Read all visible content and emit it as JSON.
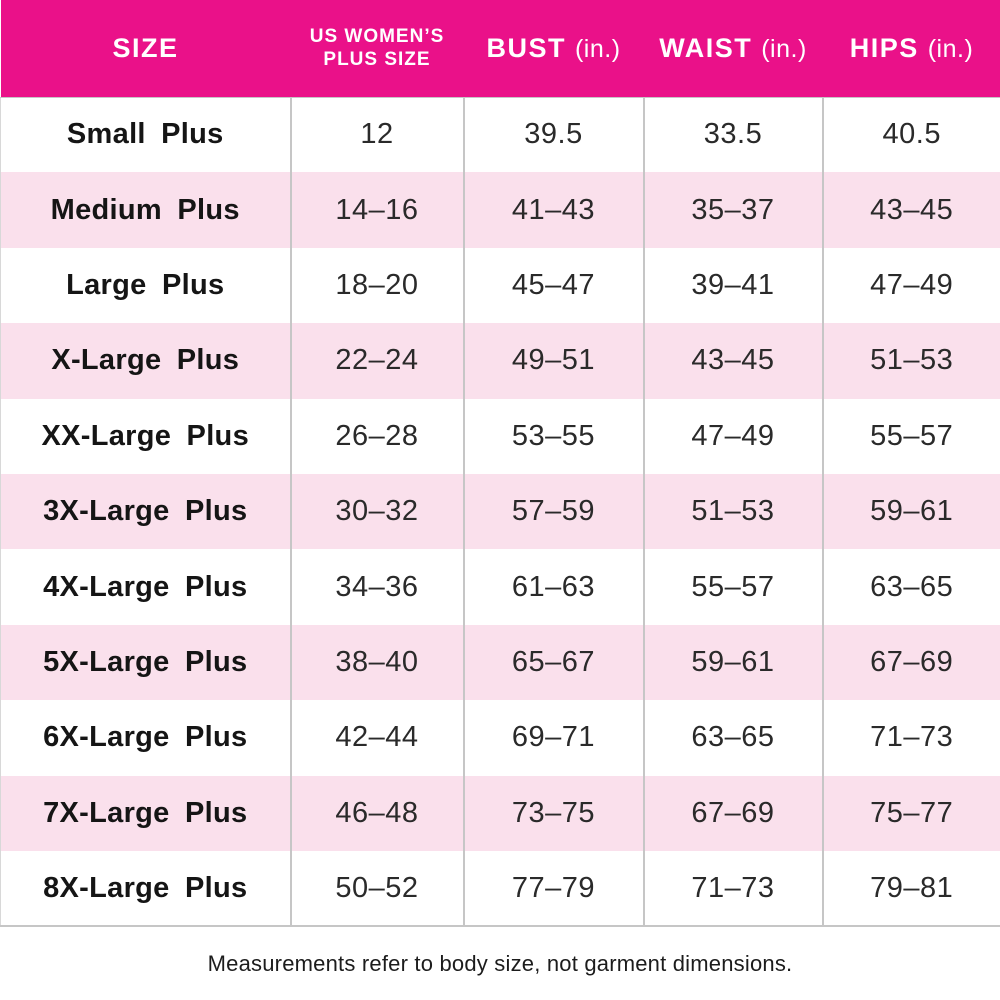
{
  "colors": {
    "header_bg": "#EA1189",
    "header_text": "#FFFFFF",
    "row_bg": "#FFFFFF",
    "row_alt_bg": "#FAE0EC",
    "grid": "#C6C6C6",
    "grid_light": "#D8D8D8",
    "text": "#2A2A2A",
    "label_text": "#151515"
  },
  "header": {
    "columns": [
      {
        "label": "SIZE",
        "unit": ""
      },
      {
        "line1": "US WOMEN’S",
        "line2": "PLUS SIZE"
      },
      {
        "label": "BUST",
        "unit": "(in.)"
      },
      {
        "label": "WAIST",
        "unit": "(in.)"
      },
      {
        "label": "HIPS",
        "unit": "(in.)"
      }
    ]
  },
  "footer": {
    "note": "Measurements refer to body size, not garment dimensions."
  },
  "chart_data": {
    "type": "table",
    "columns": [
      "SIZE",
      "US WOMEN’S PLUS SIZE",
      "BUST (in.)",
      "WAIST (in.)",
      "HIPS (in.)"
    ],
    "rows": [
      [
        "Small Plus",
        "12",
        "39.5",
        "33.5",
        "40.5"
      ],
      [
        "Medium Plus",
        "14–16",
        "41–43",
        "35–37",
        "43–45"
      ],
      [
        "Large Plus",
        "18–20",
        "45–47",
        "39–41",
        "47–49"
      ],
      [
        "X-Large Plus",
        "22–24",
        "49–51",
        "43–45",
        "51–53"
      ],
      [
        "XX-Large Plus",
        "26–28",
        "53–55",
        "47–49",
        "55–57"
      ],
      [
        "3X-Large Plus",
        "30–32",
        "57–59",
        "51–53",
        "59–61"
      ],
      [
        "4X-Large Plus",
        "34–36",
        "61–63",
        "55–57",
        "63–65"
      ],
      [
        "5X-Large Plus",
        "38–40",
        "65–67",
        "59–61",
        "67–69"
      ],
      [
        "6X-Large Plus",
        "42–44",
        "69–71",
        "63–65",
        "71–73"
      ],
      [
        "7X-Large Plus",
        "46–48",
        "73–75",
        "67–69",
        "75–77"
      ],
      [
        "8X-Large Plus",
        "50–52",
        "77–79",
        "71–73",
        "79–81"
      ]
    ]
  }
}
